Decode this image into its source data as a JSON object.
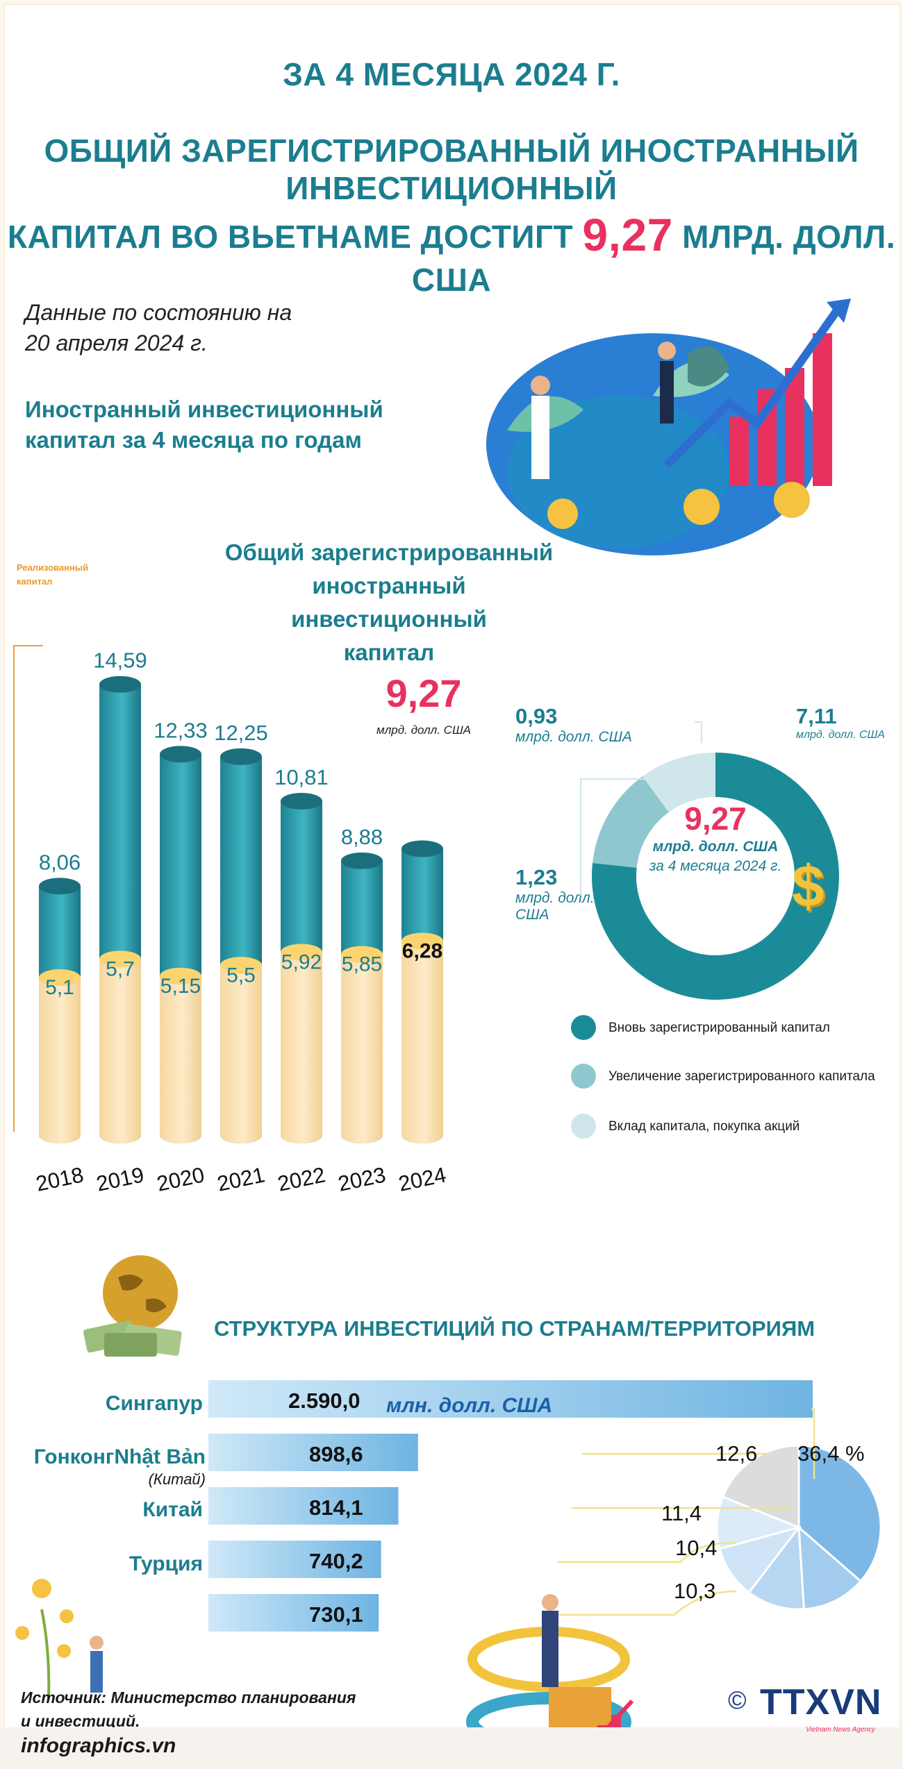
{
  "header": {
    "line1": "ЗА 4 МЕСЯЦА 2024 Г.",
    "line2": "ОБЩИЙ ЗАРЕГИСТРИРОВАННЫЙ ИНОСТРАННЫЙ ИНВЕСТИЦИОННЫЙ",
    "line3_prefix": "КАПИТАЛ ВО ВЬЕТНАМЕ ДОСТИГТ",
    "line3_value": "9,27",
    "line3_suffix": "МЛРД. ДОЛЛ. США"
  },
  "date_note": {
    "line1": "Данные по состоянию на",
    "line2": "20 апреля 2024 г."
  },
  "bar_section": {
    "title_line1": "Иностранный инвестиционный",
    "title_line2": "капитал за 4 месяца по годам",
    "realized_line1": "Реализованный",
    "realized_line2": "капитал",
    "total_line1": "Общий зарегистрированный",
    "total_line2": "иностранный",
    "total_line3": "инвестиционный",
    "total_line4": "капитал",
    "total_value": "9,27",
    "total_unit": "млрд. долл. США"
  },
  "donut_section": {
    "center_value": "9,27",
    "center_unit": "млрд. долл. США",
    "center_period": "за 4 месяца 2024 г.",
    "label_093_value": "0,93",
    "label_093_unit": "млрд. долл. США",
    "label_711_value": "7,11",
    "label_711_unit": "млрд. долл. США",
    "label_123_value": "1,23",
    "label_123_unit1": "млрд. долл.",
    "label_123_unit2": "США",
    "legend": [
      "Вновь зарегистрированный капитал",
      "Увеличение зарегистрированного капитала",
      "Вклад капитала, покупка акций"
    ]
  },
  "country_section": {
    "title": "СТРУКТУРА ИНВЕСТИЦИЙ ПО СТРАНАМ/ТЕРРИТОРИЯМ",
    "unit": "млн. долл. США",
    "names": [
      "Сингапур",
      "ГонконгNhật Bản",
      "Китай",
      "Турция",
      ""
    ],
    "sub_name": "(Китай)"
  },
  "footer": {
    "source_line1": "Источник: Министерство планирования",
    "source_line2": "и инвестиций.",
    "site": "infographics.vn",
    "copyright": "©",
    "logo": "TTXVN",
    "logo_sub": "Vietnam News Agency"
  },
  "colors": {
    "teal": "#1b7d8f",
    "teal_bar": "#2a9aab",
    "pink": "#e8315f",
    "cream": "#fbe4b5",
    "light_teal": "#8fc7cf",
    "pale_teal": "#cfe6ea",
    "blue_bar": "#8cc6ea"
  },
  "chart_data": [
    {
      "type": "bar",
      "categories": [
        "2018",
        "2019",
        "2020",
        "2021",
        "2022",
        "2023",
        "2024"
      ],
      "series": [
        {
          "name": "Общий зарегистрированный иностранный инвестиционный капитал",
          "values": [
            8.06,
            14.59,
            12.33,
            12.25,
            10.81,
            8.88,
            9.27
          ],
          "labels": [
            "8,06",
            "14,59",
            "12,33",
            "12,25",
            "10,81",
            "8,88",
            ""
          ]
        },
        {
          "name": "Реализованный капитал",
          "values": [
            5.1,
            5.7,
            5.15,
            5.5,
            5.92,
            5.85,
            6.28
          ],
          "labels": [
            "5,1",
            "5,7",
            "5,15",
            "5,5",
            "5,92",
            "5,85",
            "6,28"
          ]
        }
      ]
    },
    {
      "type": "pie",
      "title": "9,27",
      "slices": [
        {
          "name": "Вновь зарегистрированный капитал",
          "value": 7.11
        },
        {
          "name": "Увеличение зарегистрированного капитала",
          "value": 1.23
        },
        {
          "name": "Вклад капитала, покупка акций",
          "value": 0.93
        }
      ]
    },
    {
      "type": "bar",
      "orientation": "horizontal",
      "unit": "млн. долл. США",
      "categories": [
        "Сингапур",
        "ГонконгNhật Bản (Китай)",
        "Китай",
        "Турция",
        ""
      ],
      "values": [
        2590.0,
        898.6,
        814.1,
        740.2,
        730.1
      ],
      "labels": [
        "2.590,0",
        "898,6",
        "814,1",
        "740,2",
        "730,1"
      ]
    },
    {
      "type": "pie",
      "values": [
        36.4,
        12.6,
        11.4,
        10.4,
        10.3,
        18.9
      ],
      "labels": [
        "36,4 %",
        "12,6",
        "11,4",
        "10,4",
        "10,3",
        ""
      ]
    }
  ]
}
